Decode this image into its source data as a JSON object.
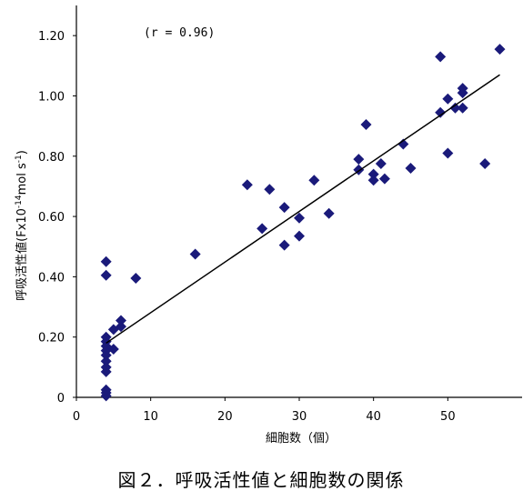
{
  "chart_data": {
    "type": "scatter",
    "title": "",
    "caption": "図２．呼吸活性値と細胞数の関係",
    "xlabel": "細胞数（個）",
    "ylabel_main": "呼吸活性値(Fx10",
    "ylabel_exp": "-14",
    "ylabel_unit": "mol s",
    "ylabel_exp2": "-1",
    "ylabel_close": ")",
    "annotation": "(r = 0.96)",
    "xlim": [
      0,
      60
    ],
    "ylim": [
      0,
      1.3
    ],
    "x_ticks": [
      0,
      10,
      20,
      30,
      40,
      50
    ],
    "x_tick_labels": [
      "0",
      "10",
      "20",
      "30",
      "40",
      "50"
    ],
    "y_ticks": [
      0,
      0.2,
      0.4,
      0.6,
      0.8,
      1.0,
      1.2
    ],
    "y_tick_labels": [
      "0",
      "0.20",
      "0.40",
      "0.60",
      "0.80",
      "1.00",
      "1.20"
    ],
    "grid": false,
    "marker": "diamond",
    "marker_color": "#1a1a7a",
    "points": [
      {
        "x": 4,
        "y": 0.45
      },
      {
        "x": 4,
        "y": 0.405
      },
      {
        "x": 4,
        "y": 0.2
      },
      {
        "x": 4,
        "y": 0.185
      },
      {
        "x": 4,
        "y": 0.17
      },
      {
        "x": 4,
        "y": 0.155
      },
      {
        "x": 4,
        "y": 0.14
      },
      {
        "x": 4,
        "y": 0.12
      },
      {
        "x": 4,
        "y": 0.1
      },
      {
        "x": 4,
        "y": 0.085
      },
      {
        "x": 4,
        "y": 0.025
      },
      {
        "x": 4,
        "y": 0.015
      },
      {
        "x": 4,
        "y": 0.005
      },
      {
        "x": 5,
        "y": 0.16
      },
      {
        "x": 5,
        "y": 0.225
      },
      {
        "x": 6,
        "y": 0.235
      },
      {
        "x": 6,
        "y": 0.255
      },
      {
        "x": 8,
        "y": 0.395
      },
      {
        "x": 16,
        "y": 0.475
      },
      {
        "x": 23,
        "y": 0.705
      },
      {
        "x": 25,
        "y": 0.56
      },
      {
        "x": 26,
        "y": 0.69
      },
      {
        "x": 28,
        "y": 0.63
      },
      {
        "x": 28,
        "y": 0.505
      },
      {
        "x": 30,
        "y": 0.595
      },
      {
        "x": 30,
        "y": 0.535
      },
      {
        "x": 32,
        "y": 0.72
      },
      {
        "x": 34,
        "y": 0.61
      },
      {
        "x": 38,
        "y": 0.79
      },
      {
        "x": 38,
        "y": 0.755
      },
      {
        "x": 39,
        "y": 0.905
      },
      {
        "x": 40,
        "y": 0.74
      },
      {
        "x": 40,
        "y": 0.72
      },
      {
        "x": 41,
        "y": 0.775
      },
      {
        "x": 41.5,
        "y": 0.725
      },
      {
        "x": 44,
        "y": 0.84
      },
      {
        "x": 45,
        "y": 0.76
      },
      {
        "x": 49,
        "y": 1.13
      },
      {
        "x": 49,
        "y": 0.945
      },
      {
        "x": 50,
        "y": 0.99
      },
      {
        "x": 50,
        "y": 0.81
      },
      {
        "x": 51,
        "y": 0.96
      },
      {
        "x": 52,
        "y": 1.025
      },
      {
        "x": 52,
        "y": 1.01
      },
      {
        "x": 52,
        "y": 0.96
      },
      {
        "x": 55,
        "y": 0.775
      },
      {
        "x": 57,
        "y": 1.155
      }
    ],
    "trendline": {
      "x": [
        4,
        57
      ],
      "y": [
        0.18,
        1.07
      ]
    }
  }
}
